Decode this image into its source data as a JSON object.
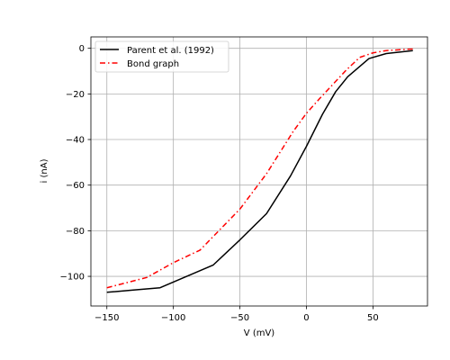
{
  "chart_data": {
    "type": "line",
    "xlabel": "V (mV)",
    "ylabel": "i (nA)",
    "xlim": [
      -162,
      91
    ],
    "ylim": [
      -113,
      5
    ],
    "xticks": [
      -150,
      -100,
      -50,
      0,
      50
    ],
    "yticks": [
      0,
      -20,
      -40,
      -60,
      -80,
      -100
    ],
    "grid": true,
    "legend_position": "top-left",
    "series": [
      {
        "name": "Parent et al. (1992)",
        "color": "#000000",
        "style": "solid",
        "x": [
          -150,
          -130,
          -110,
          -90,
          -70,
          -50,
          -30,
          -12,
          0,
          12,
          22,
          31,
          47,
          60,
          80
        ],
        "y": [
          -107,
          -106,
          -105,
          -100,
          -95,
          -84,
          -72.5,
          -56,
          -43,
          -29,
          -19,
          -12.5,
          -4.5,
          -2.3,
          -1
        ]
      },
      {
        "name": "Bond graph",
        "color": "#ff0000",
        "style": "dashdot",
        "x": [
          -150,
          -130,
          -120,
          -100,
          -80,
          -70,
          -50,
          -30,
          -10,
          0,
          10,
          30,
          40,
          50,
          60,
          80
        ],
        "y": [
          -105,
          -102,
          -100.5,
          -94,
          -88.5,
          -82.5,
          -70.5,
          -55,
          -36.5,
          -28.5,
          -22,
          -9.5,
          -4,
          -2,
          -1,
          -0.3
        ]
      }
    ]
  }
}
